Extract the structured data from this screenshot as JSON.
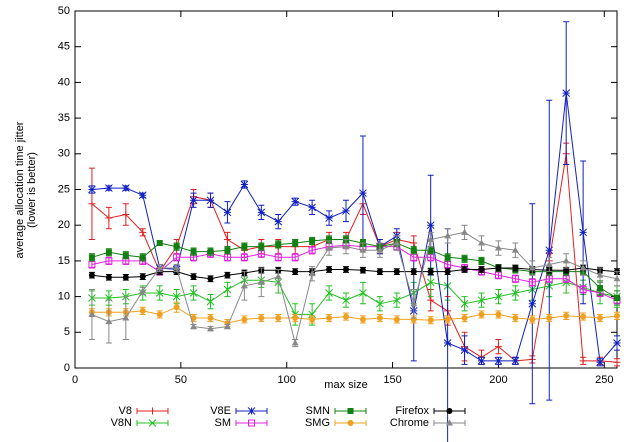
{
  "chart_data": {
    "type": "line",
    "y_label": [
      "average allocation time jitter",
      "(lower is better)"
    ],
    "x_label": "max size",
    "x": [
      8,
      16,
      24,
      32,
      40,
      48,
      56,
      64,
      72,
      80,
      88,
      96,
      104,
      112,
      120,
      128,
      136,
      144,
      152,
      160,
      168,
      176,
      184,
      192,
      200,
      208,
      216,
      224,
      232,
      240,
      248,
      256
    ],
    "xlim": [
      0,
      256
    ],
    "xticks": [
      0,
      50,
      100,
      150,
      200,
      250
    ],
    "ylim": [
      0,
      50
    ],
    "yticks": [
      0,
      5,
      10,
      15,
      20,
      25,
      30,
      35,
      40,
      45,
      50
    ],
    "series": [
      {
        "name": "V8",
        "color": "#e02020",
        "marker": "plus",
        "values": [
          23,
          21,
          21.5,
          19,
          13.5,
          17,
          24,
          23.5,
          18,
          16.5,
          17,
          17,
          17,
          17,
          18,
          18,
          23,
          17,
          18,
          17.5,
          9.5,
          8,
          3,
          1.5,
          3,
          1,
          1.2,
          15,
          30,
          1,
          1,
          0.8
        ],
        "errors": [
          5,
          1.5,
          1.5,
          0.5,
          0.5,
          1,
          1,
          1,
          1,
          1,
          1,
          1,
          1,
          1,
          1,
          1,
          1.5,
          1,
          1,
          1,
          1.5,
          2,
          2,
          1,
          1,
          0.5,
          0.5,
          1,
          1.5,
          0.5,
          0.5,
          0.5
        ]
      },
      {
        "name": "V8N",
        "color": "#20c020",
        "marker": "cross",
        "values": [
          9.8,
          9.8,
          10,
          10.5,
          10.5,
          10,
          10.5,
          9.3,
          11,
          12.3,
          12.3,
          12,
          7.5,
          7.5,
          10.5,
          9.5,
          10.5,
          9,
          9.5,
          10.5,
          12,
          11.5,
          9,
          9.5,
          10,
          10.5,
          11,
          11.5,
          12,
          11.3,
          10.5,
          10
        ],
        "errors": [
          1,
          1,
          1,
          1,
          1,
          1,
          1,
          1,
          1,
          1,
          1,
          1.5,
          1.5,
          1.5,
          1,
          1,
          1.5,
          1,
          1,
          1.5,
          2,
          2,
          1,
          1,
          1,
          1,
          1.5,
          1.5,
          1.5,
          1,
          1.5,
          1.5
        ]
      },
      {
        "name": "V8E",
        "color": "#1020c0",
        "marker": "star",
        "values": [
          25,
          25.2,
          25.2,
          24.2,
          14,
          13.8,
          23.5,
          23.5,
          21.8,
          25.7,
          21.8,
          20.5,
          23.3,
          22.5,
          21,
          22,
          24.5,
          17,
          18.5,
          8,
          20,
          3.5,
          2.5,
          1,
          1,
          1,
          9,
          16.5,
          38.5,
          19,
          0.8,
          3.5
        ],
        "errors": [
          0.5,
          0.3,
          0.3,
          0.3,
          0.5,
          0.5,
          1,
          1,
          1.5,
          0.5,
          1,
          1,
          0.5,
          1,
          1,
          1.5,
          8,
          1,
          1,
          7,
          7,
          16,
          2,
          0.5,
          0.5,
          0.5,
          14,
          21,
          10,
          10,
          0.5,
          1
        ]
      },
      {
        "name": "SM",
        "color": "#e020e0",
        "marker": "square",
        "values": [
          14.5,
          15,
          15,
          15,
          13.5,
          15.5,
          15.5,
          16,
          15.5,
          15.5,
          16,
          15.5,
          15.5,
          16.5,
          17,
          17.2,
          17,
          17,
          17,
          15.5,
          15.5,
          14.5,
          14,
          13.5,
          13,
          12.5,
          12,
          12.5,
          12.5,
          11,
          10.5,
          9.5
        ],
        "errors": [
          0.5,
          0.5,
          0.5,
          0.5,
          0.5,
          0.5,
          0.5,
          0.5,
          0.5,
          0.5,
          0.5,
          0.5,
          0.5,
          0.5,
          0.5,
          0.5,
          0.5,
          0.5,
          0.5,
          0.5,
          0.5,
          0.5,
          0.5,
          0.5,
          0.5,
          0.5,
          0.5,
          0.5,
          0.5,
          0.5,
          0.5,
          0.5
        ]
      },
      {
        "name": "SMN",
        "color": "#108010",
        "marker": "fsquare",
        "values": [
          15.5,
          16.2,
          15.8,
          15.5,
          17.5,
          17,
          16.3,
          16.3,
          16.5,
          17,
          17,
          17.3,
          17.5,
          17.8,
          18,
          18,
          17.5,
          17,
          17.5,
          16.5,
          16.5,
          15.5,
          15.3,
          15,
          14,
          13.8,
          13.5,
          13.5,
          13.5,
          13.5,
          11.2,
          9.8
        ],
        "errors": [
          0.5,
          0.5,
          0.5,
          0.5,
          0.3,
          0.5,
          0.5,
          0.5,
          0.5,
          0.5,
          0.5,
          0.5,
          0.5,
          0.5,
          0.5,
          0.5,
          0.5,
          0.5,
          0.5,
          0.5,
          0.5,
          0.5,
          0.5,
          0.5,
          0.5,
          0.5,
          0.5,
          0.5,
          0.5,
          0.5,
          1,
          1
        ]
      },
      {
        "name": "SMG",
        "color": "#f0a020",
        "marker": "circle",
        "values": [
          7.8,
          7.8,
          7.8,
          8,
          7.5,
          8.5,
          7,
          7,
          6.3,
          6.8,
          7,
          7,
          7,
          6.8,
          7,
          7.2,
          6.8,
          7,
          6.8,
          6.8,
          6.7,
          6.8,
          7,
          7.5,
          7.5,
          7,
          6.8,
          7,
          7.3,
          7.2,
          7,
          7.3
        ],
        "errors": [
          0.5,
          0.5,
          0.5,
          0.5,
          0.5,
          0.7,
          0.5,
          0.5,
          0.5,
          0.5,
          0.5,
          0.5,
          0.5,
          0.5,
          0.5,
          0.5,
          0.5,
          0.5,
          0.5,
          0.5,
          0.5,
          0.5,
          0.5,
          0.5,
          0.5,
          0.5,
          0.5,
          0.5,
          0.5,
          0.5,
          0.5,
          0.5
        ]
      },
      {
        "name": "Firefox",
        "color": "#000000",
        "marker": "circle",
        "values": [
          13,
          12.7,
          12.7,
          12.8,
          13.5,
          13.5,
          12.8,
          12.5,
          13,
          13.3,
          13.7,
          13.7,
          13.5,
          13.5,
          13.8,
          13.8,
          13.7,
          13.5,
          13.5,
          13.5,
          13.5,
          13.5,
          13.8,
          13.8,
          14,
          14,
          13.8,
          13.7,
          13.7,
          14,
          13.7,
          13.5
        ],
        "errors": [
          0.4,
          0.4,
          0.4,
          0.4,
          0.4,
          0.4,
          0.4,
          0.4,
          0.4,
          0.4,
          0.4,
          0.4,
          0.4,
          0.4,
          0.4,
          0.4,
          0.4,
          0.4,
          0.4,
          0.4,
          0.4,
          0.4,
          0.4,
          0.4,
          0.4,
          0.4,
          0.4,
          0.4,
          0.4,
          0.4,
          0.4,
          0.4
        ]
      },
      {
        "name": "Chrome",
        "color": "#888888",
        "marker": "triangle",
        "values": [
          7.5,
          6.5,
          7,
          10.8,
          14,
          14,
          5.8,
          5.5,
          5.8,
          11.5,
          12,
          12.8,
          3.5,
          13.2,
          16.8,
          17,
          16.5,
          16.5,
          17.5,
          9,
          18,
          18.5,
          19,
          17.5,
          16.8,
          16.5,
          14,
          14.5,
          15,
          14,
          13,
          12.5
        ],
        "errors": [
          3.5,
          3,
          3,
          0.5,
          0.5,
          0.5,
          0.3,
          0.3,
          0.3,
          2,
          2,
          1,
          0.5,
          1,
          1,
          1,
          1,
          1,
          1,
          2,
          1,
          1,
          1,
          1,
          1,
          1,
          1,
          1,
          1,
          1,
          1,
          1
        ]
      }
    ]
  }
}
